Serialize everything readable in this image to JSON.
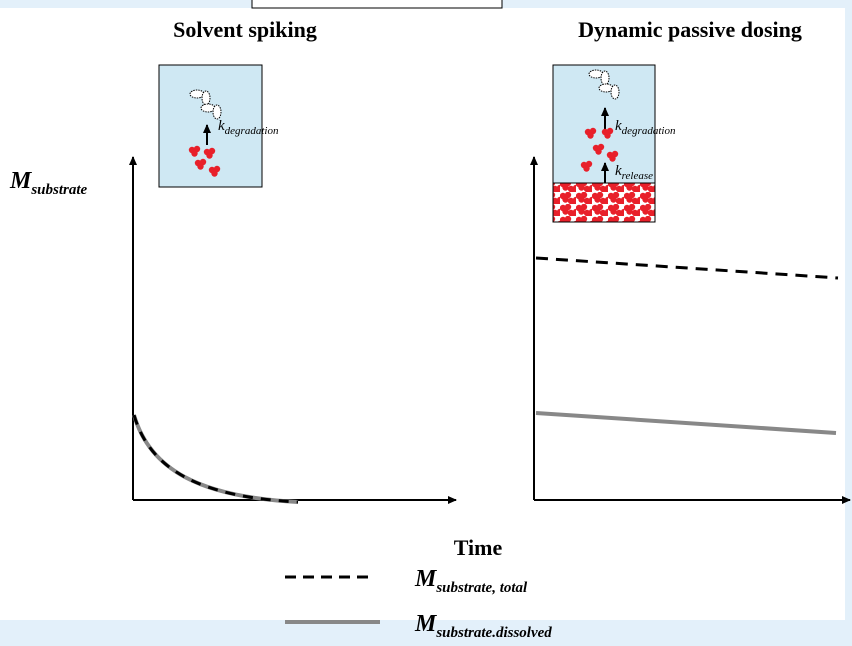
{
  "panels": [
    {
      "title": "Solvent spiking",
      "rate_labels": [
        {
          "symbol": "k",
          "subscript": "degradation"
        }
      ]
    },
    {
      "title": "Dynamic passive dosing",
      "rate_labels": [
        {
          "symbol": "k",
          "subscript": "degradation"
        },
        {
          "symbol": "k",
          "subscript": "release"
        }
      ]
    }
  ],
  "y_axis_label": {
    "symbol": "M",
    "subscript": "substrate"
  },
  "x_axis_label": "Time",
  "legend": [
    {
      "symbol": "M",
      "subscript": "substrate, total"
    },
    {
      "symbol": "M",
      "subscript": "substrate.dissolved"
    }
  ]
}
